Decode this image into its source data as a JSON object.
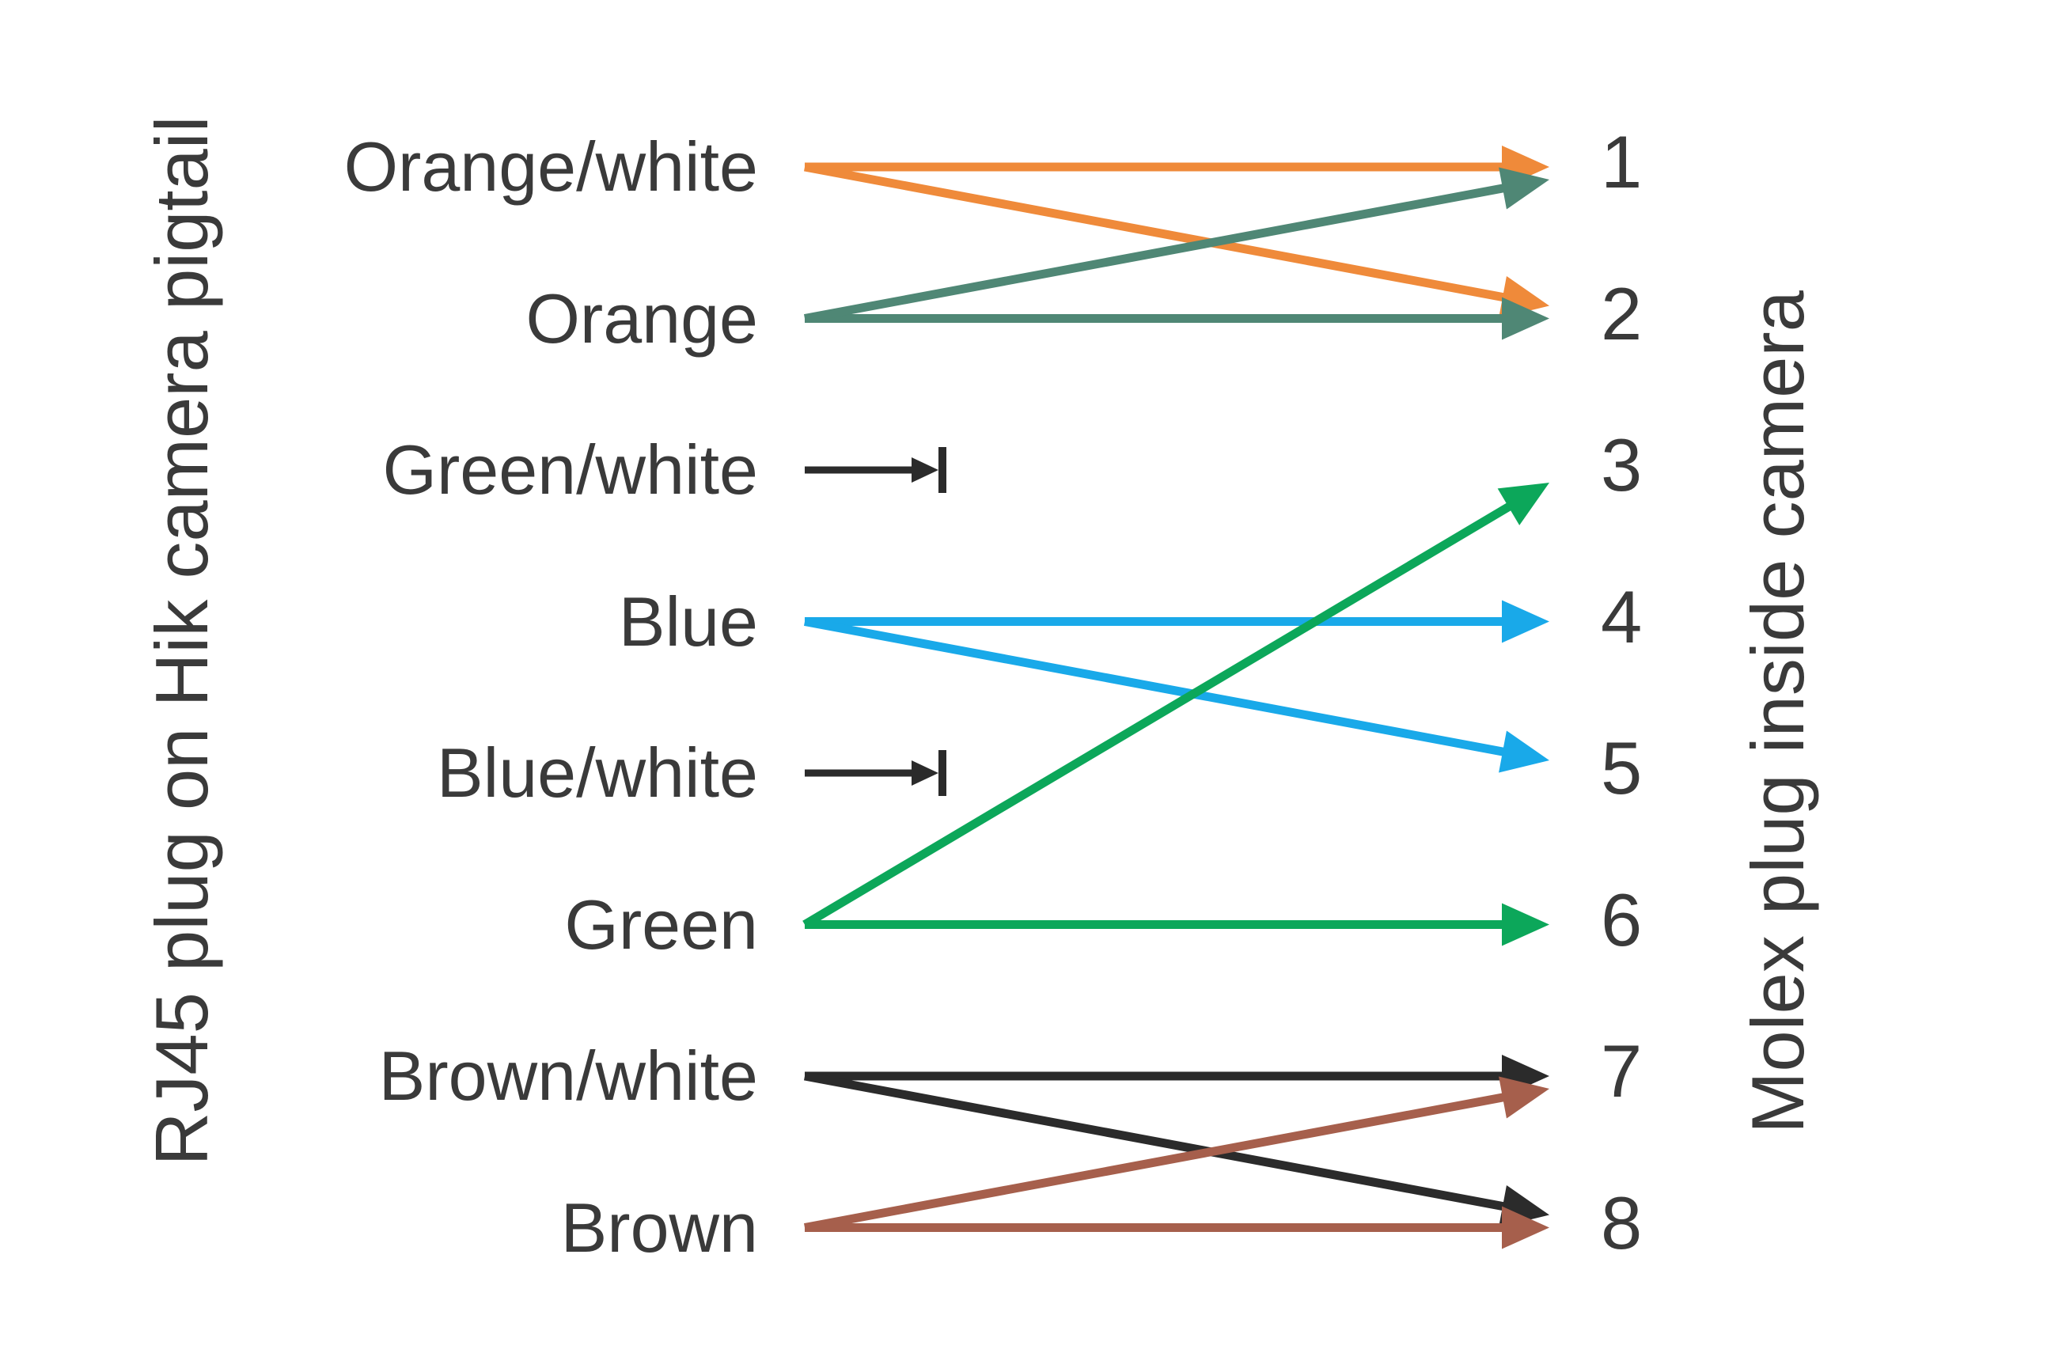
{
  "diagram": {
    "left_title": "RJ45 plug on Hik camera pigtail",
    "right_title": "Molex plug inside camera",
    "left_labels": [
      "Orange/white",
      "Orange",
      "Green/white",
      "Blue",
      "Blue/white",
      "Green",
      "Brown/white",
      "Brown"
    ],
    "right_labels": [
      "1",
      "2",
      "3",
      "4",
      "5",
      "6",
      "7",
      "8"
    ],
    "palette": {
      "orange": "#EF8A3A",
      "teal": "#4F8775",
      "blue": "#19A9E9",
      "green": "#0CA75A",
      "brown": "#A65F4C",
      "black": "#2B2B2B",
      "text": "#3A3A3A",
      "background": "#FFFFFF"
    },
    "connections": [
      {
        "from": "Orange/white",
        "to": "1",
        "color": "orange"
      },
      {
        "from": "Orange/white",
        "to": "2",
        "color": "orange"
      },
      {
        "from": "Orange",
        "to": "2",
        "color": "teal"
      },
      {
        "from": "Orange",
        "to": "1",
        "color": "teal"
      },
      {
        "from": "Blue",
        "to": "4",
        "color": "blue"
      },
      {
        "from": "Blue",
        "to": "5",
        "color": "blue"
      },
      {
        "from": "Green",
        "to": "3",
        "color": "green"
      },
      {
        "from": "Green",
        "to": "6",
        "color": "green"
      },
      {
        "from": "Brown/white",
        "to": "7",
        "color": "black"
      },
      {
        "from": "Brown/white",
        "to": "8",
        "color": "black"
      },
      {
        "from": "Brown",
        "to": "7",
        "color": "brown"
      },
      {
        "from": "Brown",
        "to": "8",
        "color": "brown"
      }
    ],
    "unconnected": [
      {
        "from": "Green/white",
        "color": "black"
      },
      {
        "from": "Blue/white",
        "color": "black"
      }
    ]
  }
}
